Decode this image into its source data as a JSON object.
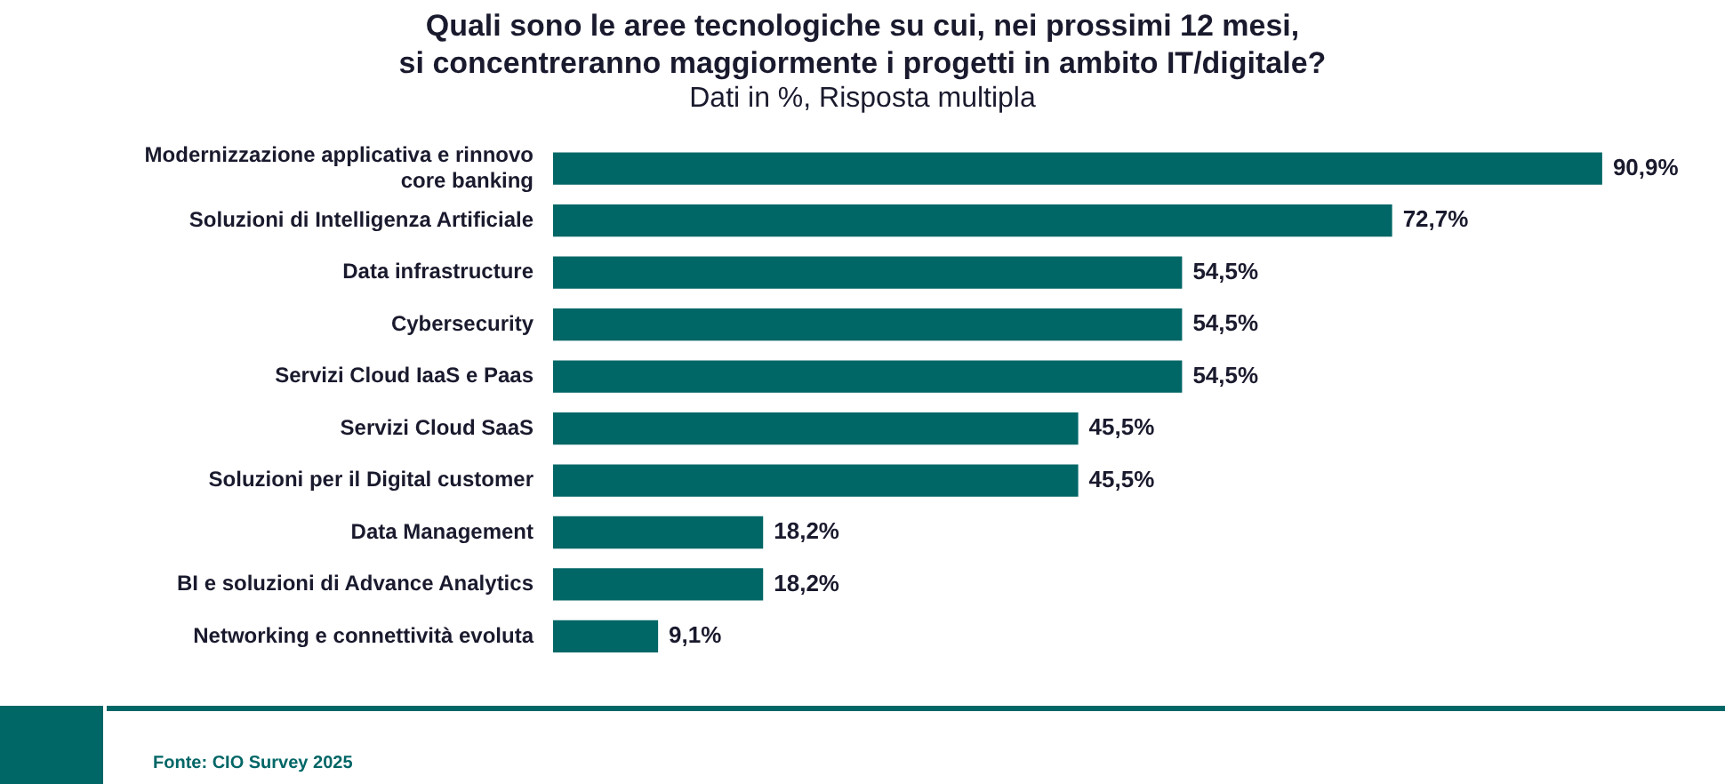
{
  "chart_data": {
    "type": "bar",
    "orientation": "horizontal",
    "title": "Quali sono le aree tecnologiche su cui, nei prossimi 12 mesi,\nsi concentreranno maggiormente i progetti in ambito IT/digitale?",
    "subtitle": "Dati in %, Risposta multipla",
    "categories": [
      "Modernizzazione applicativa e rinnovo core banking",
      "Soluzioni di Intelligenza Artificiale",
      "Data infrastructure",
      "Cybersecurity",
      "Servizi Cloud IaaS e Paas",
      "Servizi Cloud SaaS",
      "Soluzioni per il Digital customer",
      "Data Management",
      "BI e soluzioni di Advance Analytics",
      "Networking e connettività evoluta"
    ],
    "values": [
      90.9,
      72.7,
      54.5,
      54.5,
      54.5,
      45.5,
      45.5,
      18.2,
      18.2,
      9.1
    ],
    "value_labels": [
      "90,9%",
      "72,7%",
      "54,5%",
      "54,5%",
      "54,5%",
      "45,5%",
      "45,5%",
      "18,2%",
      "18,2%",
      "9,1%"
    ],
    "color": "#006666",
    "tick_labels": "y",
    "legend": false,
    "annotations": [
      "Fonte: CIO Survey 2025"
    ]
  }
}
